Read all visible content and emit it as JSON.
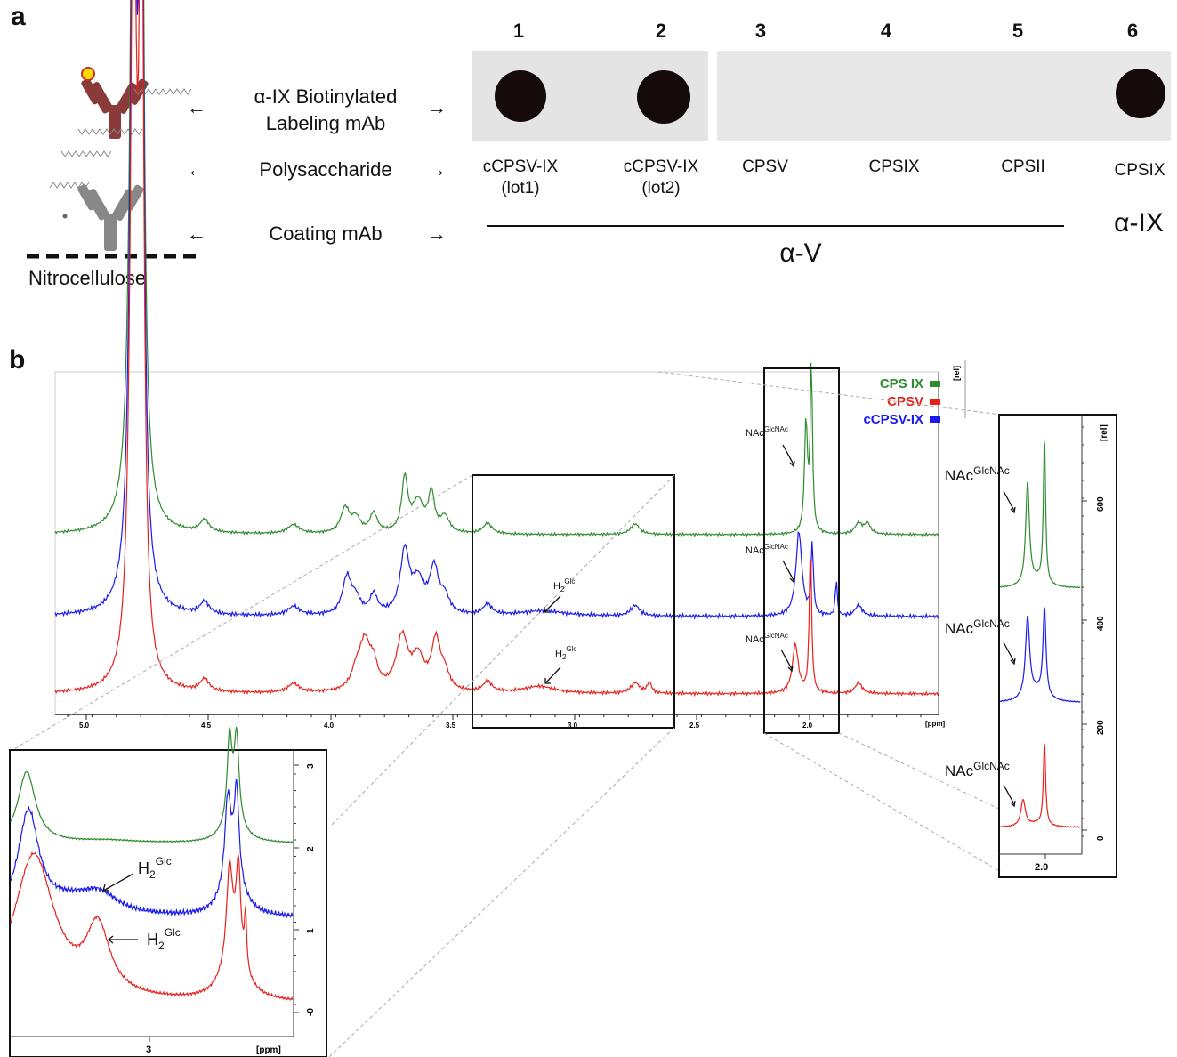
{
  "panel_a": {
    "letter": "a",
    "lanes": [
      "1",
      "2",
      "3",
      "4",
      "5",
      "6"
    ],
    "scheme_labels": {
      "labeling_line1": "α-IX Biotinylated",
      "labeling_line2": "Labeling mAb",
      "polysaccharide": "Polysaccharide",
      "coating": "Coating mAb",
      "membrane": "Nitrocellulose"
    },
    "arrows": {
      "left": "←",
      "right": "→"
    },
    "samples": [
      {
        "name": "cCPSV-IX",
        "lot": "(lot1)"
      },
      {
        "name": "cCPSV-IX",
        "lot": "(lot2)"
      },
      {
        "name": "CPSV",
        "lot": ""
      },
      {
        "name": "CPSIX",
        "lot": ""
      },
      {
        "name": "CPSII",
        "lot": ""
      },
      {
        "name": "CPSIX",
        "lot": ""
      }
    ],
    "antibody_alpha_v": "α-V",
    "antibody_alpha_ix": "α-IX",
    "spots_present": [
      true,
      true,
      false,
      false,
      false,
      true
    ]
  },
  "panel_b": {
    "letter": "b",
    "main_chart": {
      "x_ticks": [
        "5.0",
        "4.5",
        "4.0",
        "3.5",
        "3.0",
        "2.5",
        "2.0"
      ],
      "x_unit": "[ppm]",
      "y_unit": "[rel]",
      "legend": [
        {
          "name": "CPS IX",
          "color": "#2e8b2e"
        },
        {
          "name": "CPSV",
          "color": "#e8201a"
        },
        {
          "name": "cCPSV-IX",
          "color": "#1a1aee"
        }
      ],
      "annotations": {
        "nac_base": "NAc",
        "nac_sup": "GlcNAc",
        "h2_base": "H",
        "h2_sub": "2",
        "h2_sup": "Glc"
      }
    },
    "zoom_nac": {
      "x_ticks": [
        "2.0"
      ],
      "y_ticks": [
        "600",
        "400",
        "200",
        "0"
      ],
      "y_unit": "[rel]"
    },
    "zoom_h2": {
      "x_ticks": [
        "3"
      ],
      "x_unit": "[ppm]",
      "y_ticks": [
        "3",
        "2",
        "1",
        "-0"
      ]
    }
  }
}
